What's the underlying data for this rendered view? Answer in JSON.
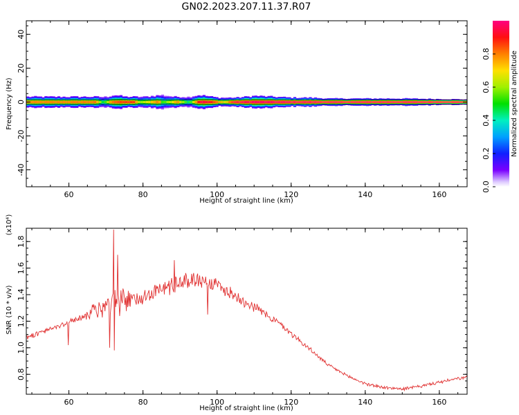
{
  "title": "GN02.2023.207.11.37.R07",
  "chart_data": [
    {
      "type": "heatmap",
      "xlabel": "Height of straight line (km)",
      "ylabel": "Frequency (Hz)",
      "xlim": [
        48.5,
        167.5
      ],
      "ylim": [
        -50,
        48
      ],
      "xticks": [
        60,
        80,
        100,
        120,
        140,
        160
      ],
      "yticks": [
        40,
        20,
        0,
        -20,
        -40
      ],
      "colorbar": {
        "label": "Normalized spectral amplitude",
        "range": [
          0.0,
          1.0
        ],
        "ticks": [
          0.0,
          0.2,
          0.4,
          0.6,
          0.8
        ]
      },
      "energy_band": {
        "center_frequency": 0,
        "spread_x": [
          48.5,
          70,
          72,
          75,
          80,
          85,
          88,
          92,
          95,
          100,
          105,
          110,
          115,
          120,
          125,
          130,
          140,
          150,
          167.5
        ],
        "spread_hz": [
          3,
          3,
          4,
          3,
          3,
          4,
          3,
          3,
          4,
          2.5,
          2.5,
          3.5,
          3,
          2.5,
          2.5,
          2,
          2,
          2,
          1.5
        ],
        "peak_x": [
          48.5,
          67,
          69,
          71,
          73,
          77,
          79,
          84,
          85,
          89,
          92,
          95,
          98,
          102,
          104,
          110,
          130,
          167.5
        ],
        "peak_amplitude": [
          0.8,
          0.82,
          0.45,
          0.8,
          0.85,
          0.9,
          0.6,
          0.82,
          0.5,
          0.8,
          0.45,
          0.95,
          0.92,
          0.7,
          0.95,
          0.97,
          0.98,
          1.0
        ]
      }
    },
    {
      "type": "line",
      "xlabel": "Height of straight line (km)",
      "ylabel": "SNR (10 * v/v)",
      "y_exponent": "(x10⁴)",
      "xlim": [
        48.5,
        167.5
      ],
      "ylim": [
        0.65,
        1.9
      ],
      "xticks": [
        60,
        80,
        100,
        120,
        140,
        160
      ],
      "yticks": [
        0.8,
        1.0,
        1.2,
        1.4,
        1.6,
        1.8
      ],
      "color": "#e03030",
      "series": [
        {
          "x": [
            48.5,
            55,
            60,
            65,
            70,
            75,
            80,
            85,
            90,
            95,
            100,
            105,
            110,
            115,
            120,
            125,
            130,
            135,
            140,
            145,
            150,
            155,
            160,
            167.5
          ],
          "values": [
            1.08,
            1.14,
            1.19,
            1.25,
            1.31,
            1.34,
            1.39,
            1.44,
            1.49,
            1.52,
            1.47,
            1.39,
            1.31,
            1.22,
            1.11,
            0.99,
            0.87,
            0.79,
            0.73,
            0.7,
            0.69,
            0.71,
            0.74,
            0.78
          ]
        }
      ],
      "noise_bounds_x": [
        48.5,
        64,
        66,
        70,
        72,
        76,
        78,
        84,
        86,
        100,
        110,
        130,
        167.5
      ],
      "noise_amplitude": [
        0.015,
        0.02,
        0.05,
        0.06,
        0.1,
        0.08,
        0.05,
        0.05,
        0.06,
        0.05,
        0.03,
        0.01,
        0.01
      ],
      "spikes": [
        {
          "x": 72.0,
          "y": 1.89
        },
        {
          "x": 72.3,
          "y": 0.98
        },
        {
          "x": 71.0,
          "y": 1.0
        },
        {
          "x": 73.2,
          "y": 1.7
        },
        {
          "x": 88.5,
          "y": 1.66
        },
        {
          "x": 97.5,
          "y": 1.25
        },
        {
          "x": 59.8,
          "y": 1.02
        }
      ]
    }
  ]
}
